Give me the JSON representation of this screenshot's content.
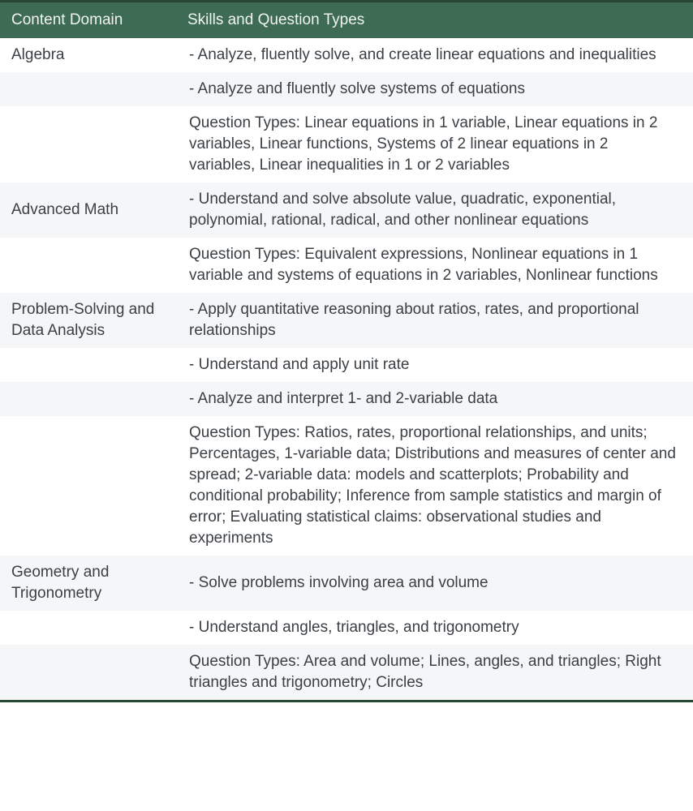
{
  "table": {
    "columns": [
      "Content Domain",
      "Skills and Question Types"
    ],
    "rows": [
      {
        "domain": "Algebra",
        "text": "- Analyze, fluently solve, and create linear equations and inequalities"
      },
      {
        "domain": "",
        "text": "- Analyze and fluently solve systems of equations"
      },
      {
        "domain": "",
        "text": "Question Types: Linear equations in 1 variable, Linear equations in 2 variables, Linear functions, Systems of 2 linear equations in 2 variables, Linear inequalities in 1 or 2 variables"
      },
      {
        "domain": "Advanced Math",
        "text": "- Understand and solve absolute value, quadratic, exponential, polynomial, rational, radical, and other nonlinear equations"
      },
      {
        "domain": "",
        "text": "Question Types: Equivalent expressions, Nonlinear equations in 1 variable and systems of equations in 2 variables, Nonlinear functions"
      },
      {
        "domain": "Problem-Solving and Data Analysis",
        "text": "- Apply quantitative reasoning about ratios, rates, and proportional relationships"
      },
      {
        "domain": "",
        "text": "- Understand and apply unit rate"
      },
      {
        "domain": "",
        "text": "- Analyze and interpret 1- and 2-variable data"
      },
      {
        "domain": "",
        "text": "Question Types: Ratios, rates, proportional relationships, and units; Percentages, 1-variable data; Distributions and measures of center and spread; 2-variable data: models and scatterplots; Probability and conditional probability; Inference from sample statistics and margin of error; Evaluating statistical claims: observational studies and experiments"
      },
      {
        "domain": "Geometry and Trigonometry",
        "text": "- Solve problems involving area and volume"
      },
      {
        "domain": "",
        "text": "- Understand angles, triangles, and trigonometry"
      },
      {
        "domain": "",
        "text": "Question Types: Area and volume; Lines, angles, and triangles; Right triangles and trigonometry; Circles"
      }
    ],
    "colors": {
      "header_bg": "#3e6b54",
      "header_text": "#f0f3f1",
      "border_dark": "#254734",
      "row_bg": "#ffffff",
      "row_alt_bg": "#f5f6f7",
      "body_text": "#3b4045"
    }
  }
}
